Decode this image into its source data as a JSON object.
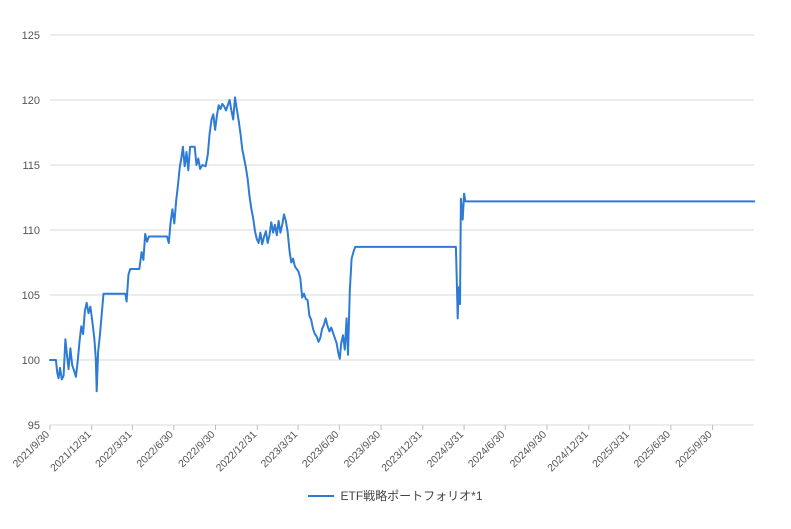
{
  "chart_data": {
    "type": "line",
    "title": "",
    "xlabel": "",
    "ylabel": "",
    "ylim": [
      95,
      125
    ],
    "yticks": [
      "95",
      "100",
      "105",
      "110",
      "115",
      "120",
      "125"
    ],
    "xticks": [
      "2021/9/30",
      "2021/12/31",
      "2022/3/31",
      "2022/6/30",
      "2022/9/30",
      "2022/12/31",
      "2023/3/31",
      "2023/6/30",
      "2023/9/30",
      "2023/12/31",
      "2024/3/31",
      "2024/6/30",
      "2024/9/30",
      "2024/12/31",
      "2025/3/31",
      "2025/6/30",
      "2025/9/30"
    ],
    "grid": true,
    "legend": "bottom-center",
    "series": [
      {
        "name": "ETF戦略ポートフォリオ*1",
        "color": "#2e7bd6",
        "points": [
          [
            "2021/9/30",
            100.0
          ],
          [
            "2021/10/13",
            100.0
          ],
          [
            "2021/10/16",
            99.0
          ],
          [
            "2021/10/19",
            98.6
          ],
          [
            "2021/10/22",
            99.4
          ],
          [
            "2021/10/26",
            98.5
          ],
          [
            "2021/10/30",
            98.8
          ],
          [
            "2021/11/3",
            101.6
          ],
          [
            "2021/11/7",
            100.2
          ],
          [
            "2021/11/10",
            99.3
          ],
          [
            "2021/11/14",
            100.9
          ],
          [
            "2021/11/18",
            99.6
          ],
          [
            "2021/11/22",
            99.2
          ],
          [
            "2021/11/26",
            98.7
          ],
          [
            "2021/11/30",
            99.9
          ],
          [
            "2021/12/4",
            101.4
          ],
          [
            "2021/12/8",
            102.6
          ],
          [
            "2021/12/12",
            102.0
          ],
          [
            "2021/12/16",
            103.8
          ],
          [
            "2021/12/20",
            104.4
          ],
          [
            "2021/12/24",
            103.6
          ],
          [
            "2021/12/28",
            104.1
          ],
          [
            "2022/1/2",
            102.8
          ],
          [
            "2022/1/6",
            101.6
          ],
          [
            "2022/1/9",
            100.1
          ],
          [
            "2022/1/11",
            97.6
          ],
          [
            "2022/1/14",
            100.6
          ],
          [
            "2022/1/18",
            101.9
          ],
          [
            "2022/1/22",
            103.5
          ],
          [
            "2022/1/26",
            105.1
          ],
          [
            "2022/2/20",
            105.1
          ],
          [
            "2022/3/1",
            105.1
          ],
          [
            "2022/3/15",
            105.1
          ],
          [
            "2022/3/18",
            104.5
          ],
          [
            "2022/3/22",
            106.6
          ],
          [
            "2022/3/26",
            107.0
          ],
          [
            "2022/4/15",
            107.0
          ],
          [
            "2022/4/20",
            108.3
          ],
          [
            "2022/4/24",
            107.7
          ],
          [
            "2022/4/28",
            109.7
          ],
          [
            "2022/5/2",
            109.1
          ],
          [
            "2022/5/6",
            109.5
          ],
          [
            "2022/6/15",
            109.5
          ],
          [
            "2022/6/19",
            109.0
          ],
          [
            "2022/6/23",
            110.6
          ],
          [
            "2022/6/27",
            111.6
          ],
          [
            "2022/7/1",
            110.5
          ],
          [
            "2022/7/5",
            112.2
          ],
          [
            "2022/7/9",
            113.4
          ],
          [
            "2022/7/13",
            114.8
          ],
          [
            "2022/7/17",
            115.6
          ],
          [
            "2022/7/20",
            116.4
          ],
          [
            "2022/7/24",
            114.9
          ],
          [
            "2022/7/28",
            116.0
          ],
          [
            "2022/8/1",
            114.6
          ],
          [
            "2022/8/5",
            116.4
          ],
          [
            "2022/8/15",
            116.4
          ],
          [
            "2022/8/19",
            115.0
          ],
          [
            "2022/8/23",
            115.5
          ],
          [
            "2022/8/27",
            114.7
          ],
          [
            "2022/9/1",
            115.0
          ],
          [
            "2022/9/8",
            114.9
          ],
          [
            "2022/9/13",
            115.8
          ],
          [
            "2022/9/17",
            117.4
          ],
          [
            "2022/9/21",
            118.5
          ],
          [
            "2022/9/25",
            118.9
          ],
          [
            "2022/9/29",
            117.7
          ],
          [
            "2022/10/3",
            118.8
          ],
          [
            "2022/10/7",
            119.6
          ],
          [
            "2022/10/11",
            119.3
          ],
          [
            "2022/10/15",
            119.7
          ],
          [
            "2022/10/19",
            119.5
          ],
          [
            "2022/10/23",
            119.2
          ],
          [
            "2022/10/27",
            119.6
          ],
          [
            "2022/10/31",
            120.0
          ],
          [
            "2022/11/4",
            119.2
          ],
          [
            "2022/11/8",
            118.5
          ],
          [
            "2022/11/12",
            120.2
          ],
          [
            "2022/11/16",
            119.3
          ],
          [
            "2022/11/20",
            118.4
          ],
          [
            "2022/11/24",
            117.4
          ],
          [
            "2022/11/28",
            116.2
          ],
          [
            "2022/12/2",
            115.5
          ],
          [
            "2022/12/6",
            114.8
          ],
          [
            "2022/12/10",
            113.9
          ],
          [
            "2022/12/14",
            112.6
          ],
          [
            "2022/12/18",
            111.6
          ],
          [
            "2022/12/22",
            110.9
          ],
          [
            "2022/12/26",
            109.9
          ],
          [
            "2022/12/30",
            109.3
          ],
          [
            "2023/1/3",
            109.0
          ],
          [
            "2023/1/7",
            109.8
          ],
          [
            "2023/1/11",
            108.9
          ],
          [
            "2023/1/15",
            109.5
          ],
          [
            "2023/1/19",
            109.9
          ],
          [
            "2023/1/23",
            109.0
          ],
          [
            "2023/1/27",
            109.6
          ],
          [
            "2023/1/31",
            110.6
          ],
          [
            "2023/2/4",
            109.8
          ],
          [
            "2023/2/8",
            110.4
          ],
          [
            "2023/2/12",
            109.6
          ],
          [
            "2023/2/16",
            110.7
          ],
          [
            "2023/2/20",
            109.8
          ],
          [
            "2023/2/24",
            110.4
          ],
          [
            "2023/2/28",
            111.2
          ],
          [
            "2023/3/4",
            110.7
          ],
          [
            "2023/3/8",
            109.9
          ],
          [
            "2023/3/12",
            108.4
          ],
          [
            "2023/3/16",
            107.5
          ],
          [
            "2023/3/20",
            107.8
          ],
          [
            "2023/3/24",
            107.2
          ],
          [
            "2023/3/28",
            107.0
          ],
          [
            "2023/4/1",
            106.8
          ],
          [
            "2023/4/5",
            106.3
          ],
          [
            "2023/4/9",
            104.8
          ],
          [
            "2023/4/13",
            105.1
          ],
          [
            "2023/4/17",
            104.7
          ],
          [
            "2023/4/21",
            104.6
          ],
          [
            "2023/4/25",
            103.4
          ],
          [
            "2023/4/29",
            103.1
          ],
          [
            "2023/5/3",
            102.4
          ],
          [
            "2023/5/7",
            102.0
          ],
          [
            "2023/5/11",
            101.8
          ],
          [
            "2023/5/15",
            101.4
          ],
          [
            "2023/5/19",
            101.7
          ],
          [
            "2023/5/23",
            102.4
          ],
          [
            "2023/5/27",
            102.7
          ],
          [
            "2023/5/31",
            103.2
          ],
          [
            "2023/6/4",
            102.6
          ],
          [
            "2023/6/8",
            102.2
          ],
          [
            "2023/6/12",
            102.5
          ],
          [
            "2023/6/16",
            102.1
          ],
          [
            "2023/6/20",
            101.7
          ],
          [
            "2023/6/24",
            101.3
          ],
          [
            "2023/6/28",
            100.5
          ],
          [
            "2023/7/1",
            100.1
          ],
          [
            "2023/7/4",
            101.3
          ],
          [
            "2023/7/8",
            101.9
          ],
          [
            "2023/7/12",
            100.8
          ],
          [
            "2023/7/16",
            103.2
          ],
          [
            "2023/7/19",
            100.4
          ],
          [
            "2023/7/23",
            105.3
          ],
          [
            "2023/7/27",
            107.8
          ],
          [
            "2023/7/31",
            108.3
          ],
          [
            "2023/8/4",
            108.7
          ],
          [
            "2024/3/13",
            108.7
          ],
          [
            "2024/3/15",
            106.1
          ],
          [
            "2024/3/17",
            103.2
          ],
          [
            "2024/3/19",
            105.6
          ],
          [
            "2024/3/22",
            104.3
          ],
          [
            "2024/3/24",
            112.4
          ],
          [
            "2024/3/28",
            110.8
          ],
          [
            "2024/3/31",
            112.8
          ],
          [
            "2024/4/3",
            112.2
          ],
          [
            "2024/4/25",
            112.2
          ],
          [
            "2025/3/31",
            112.2
          ],
          [
            "2025/9/30",
            112.2
          ],
          [
            "2025/12/31",
            112.2
          ]
        ]
      }
    ]
  }
}
